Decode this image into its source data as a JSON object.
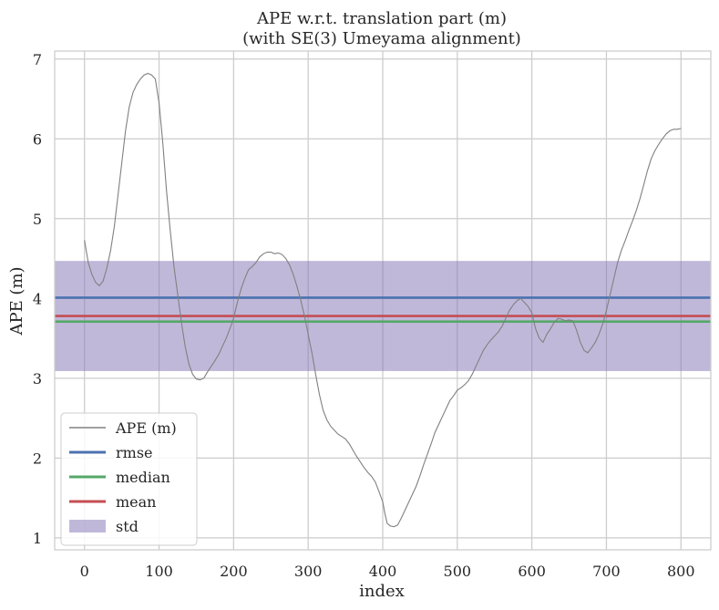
{
  "chart_data": {
    "type": "line",
    "title": "APE w.r.t. translation part (m)",
    "subtitle": "(with SE(3) Umeyama alignment)",
    "xlabel": "index",
    "ylabel": "APE (m)",
    "xlim": [
      -40,
      840
    ],
    "ylim": [
      0.85,
      7.1
    ],
    "xticks": [
      0,
      100,
      200,
      300,
      400,
      500,
      600,
      700,
      800
    ],
    "yticks": [
      1,
      2,
      3,
      4,
      5,
      6,
      7
    ],
    "grid": true,
    "legend_position": "lower-left",
    "series": [
      {
        "name": "APE (m)",
        "color": "#808080",
        "points": [
          [
            0,
            4.73
          ],
          [
            5,
            4.45
          ],
          [
            10,
            4.3
          ],
          [
            15,
            4.2
          ],
          [
            20,
            4.16
          ],
          [
            25,
            4.22
          ],
          [
            30,
            4.38
          ],
          [
            35,
            4.6
          ],
          [
            40,
            4.9
          ],
          [
            45,
            5.3
          ],
          [
            50,
            5.7
          ],
          [
            55,
            6.1
          ],
          [
            60,
            6.4
          ],
          [
            65,
            6.58
          ],
          [
            70,
            6.68
          ],
          [
            75,
            6.75
          ],
          [
            80,
            6.8
          ],
          [
            85,
            6.82
          ],
          [
            90,
            6.8
          ],
          [
            95,
            6.75
          ],
          [
            100,
            6.45
          ],
          [
            105,
            5.95
          ],
          [
            110,
            5.35
          ],
          [
            115,
            4.85
          ],
          [
            120,
            4.4
          ],
          [
            125,
            4.05
          ],
          [
            130,
            3.7
          ],
          [
            135,
            3.4
          ],
          [
            140,
            3.18
          ],
          [
            145,
            3.05
          ],
          [
            150,
            2.99
          ],
          [
            155,
            2.98
          ],
          [
            160,
            3.0
          ],
          [
            165,
            3.08
          ],
          [
            170,
            3.15
          ],
          [
            175,
            3.22
          ],
          [
            180,
            3.3
          ],
          [
            185,
            3.4
          ],
          [
            190,
            3.5
          ],
          [
            195,
            3.62
          ],
          [
            200,
            3.75
          ],
          [
            205,
            3.95
          ],
          [
            210,
            4.12
          ],
          [
            215,
            4.25
          ],
          [
            220,
            4.36
          ],
          [
            225,
            4.4
          ],
          [
            230,
            4.45
          ],
          [
            235,
            4.52
          ],
          [
            240,
            4.56
          ],
          [
            245,
            4.58
          ],
          [
            250,
            4.58
          ],
          [
            255,
            4.56
          ],
          [
            260,
            4.57
          ],
          [
            265,
            4.55
          ],
          [
            270,
            4.5
          ],
          [
            275,
            4.42
          ],
          [
            280,
            4.3
          ],
          [
            285,
            4.15
          ],
          [
            290,
            3.98
          ],
          [
            295,
            3.78
          ],
          [
            300,
            3.55
          ],
          [
            305,
            3.32
          ],
          [
            310,
            3.05
          ],
          [
            315,
            2.8
          ],
          [
            320,
            2.6
          ],
          [
            325,
            2.48
          ],
          [
            330,
            2.4
          ],
          [
            335,
            2.35
          ],
          [
            340,
            2.3
          ],
          [
            345,
            2.27
          ],
          [
            350,
            2.24
          ],
          [
            355,
            2.18
          ],
          [
            360,
            2.1
          ],
          [
            365,
            2.02
          ],
          [
            370,
            1.95
          ],
          [
            375,
            1.88
          ],
          [
            380,
            1.82
          ],
          [
            385,
            1.77
          ],
          [
            390,
            1.7
          ],
          [
            395,
            1.58
          ],
          [
            400,
            1.45
          ],
          [
            403,
            1.3
          ],
          [
            406,
            1.18
          ],
          [
            410,
            1.15
          ],
          [
            415,
            1.14
          ],
          [
            420,
            1.16
          ],
          [
            425,
            1.25
          ],
          [
            430,
            1.35
          ],
          [
            435,
            1.45
          ],
          [
            440,
            1.55
          ],
          [
            445,
            1.65
          ],
          [
            450,
            1.78
          ],
          [
            455,
            1.92
          ],
          [
            460,
            2.05
          ],
          [
            465,
            2.18
          ],
          [
            470,
            2.32
          ],
          [
            475,
            2.42
          ],
          [
            480,
            2.52
          ],
          [
            485,
            2.62
          ],
          [
            490,
            2.72
          ],
          [
            495,
            2.78
          ],
          [
            500,
            2.85
          ],
          [
            505,
            2.88
          ],
          [
            510,
            2.92
          ],
          [
            515,
            2.97
          ],
          [
            520,
            3.05
          ],
          [
            525,
            3.15
          ],
          [
            530,
            3.25
          ],
          [
            535,
            3.35
          ],
          [
            540,
            3.42
          ],
          [
            545,
            3.48
          ],
          [
            550,
            3.53
          ],
          [
            555,
            3.58
          ],
          [
            560,
            3.65
          ],
          [
            565,
            3.75
          ],
          [
            570,
            3.85
          ],
          [
            575,
            3.92
          ],
          [
            580,
            3.97
          ],
          [
            585,
            4.0
          ],
          [
            590,
            3.95
          ],
          [
            595,
            3.9
          ],
          [
            600,
            3.82
          ],
          [
            605,
            3.62
          ],
          [
            610,
            3.5
          ],
          [
            615,
            3.45
          ],
          [
            620,
            3.55
          ],
          [
            625,
            3.62
          ],
          [
            630,
            3.7
          ],
          [
            635,
            3.75
          ],
          [
            640,
            3.74
          ],
          [
            645,
            3.72
          ],
          [
            650,
            3.73
          ],
          [
            655,
            3.72
          ],
          [
            660,
            3.6
          ],
          [
            665,
            3.45
          ],
          [
            670,
            3.35
          ],
          [
            675,
            3.32
          ],
          [
            680,
            3.38
          ],
          [
            685,
            3.45
          ],
          [
            690,
            3.55
          ],
          [
            695,
            3.68
          ],
          [
            700,
            3.85
          ],
          [
            705,
            4.05
          ],
          [
            710,
            4.25
          ],
          [
            715,
            4.45
          ],
          [
            720,
            4.6
          ],
          [
            725,
            4.72
          ],
          [
            730,
            4.85
          ],
          [
            735,
            4.97
          ],
          [
            740,
            5.1
          ],
          [
            745,
            5.25
          ],
          [
            750,
            5.42
          ],
          [
            755,
            5.6
          ],
          [
            760,
            5.75
          ],
          [
            765,
            5.85
          ],
          [
            770,
            5.93
          ],
          [
            775,
            6.0
          ],
          [
            780,
            6.06
          ],
          [
            785,
            6.1
          ],
          [
            790,
            6.12
          ],
          [
            795,
            6.12
          ],
          [
            800,
            6.13
          ]
        ]
      },
      {
        "name": "rmse",
        "color": "#4c72b0",
        "value": 4.01
      },
      {
        "name": "median",
        "color": "#55a868",
        "value": 3.71
      },
      {
        "name": "mean",
        "color": "#c44e52",
        "value": 3.78
      }
    ],
    "std_band": {
      "name": "std",
      "color": "#8172b3",
      "lower": 3.09,
      "upper": 4.47
    }
  }
}
